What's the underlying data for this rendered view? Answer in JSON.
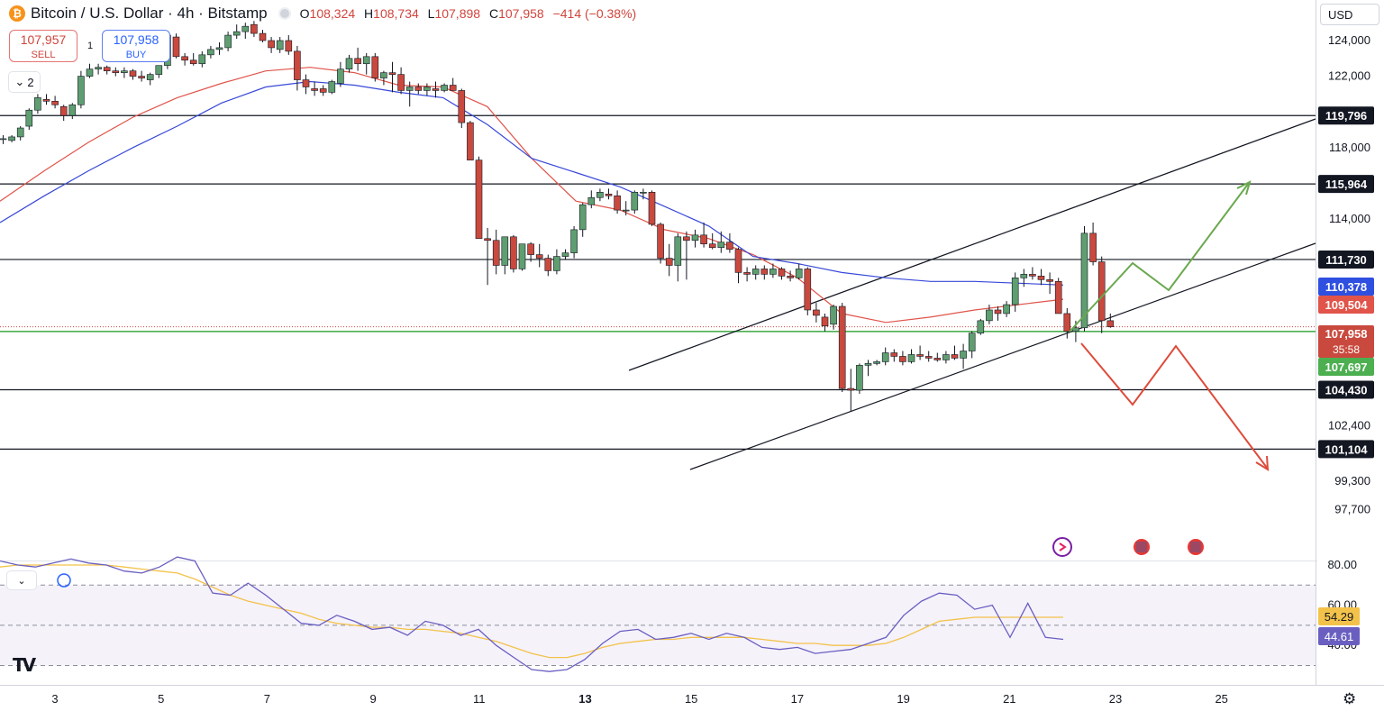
{
  "header": {
    "coin_glyph": "₿",
    "symbol_title": "Bitcoin / U.S. Dollar · 4h · Bitstamp",
    "ohlc": [
      {
        "label": "O",
        "value": "108,324"
      },
      {
        "label": "H",
        "value": "108,734"
      },
      {
        "label": "L",
        "value": "107,898"
      },
      {
        "label": "C",
        "value": "107,958"
      },
      {
        "label": "",
        "value": "−414 (−0.38%)"
      }
    ]
  },
  "trade": {
    "sell_price": "107,957",
    "sell_label": "SELL",
    "buy_price": "107,958",
    "buy_label": "BUY",
    "spread": "1"
  },
  "indicator_toggle": {
    "count": "2",
    "icon": "chevron-down-icon"
  },
  "currency": "USD",
  "colors": {
    "up": "#5f9e70",
    "down": "#c9493e",
    "ema_fast": "#e0544a",
    "ema_slow": "#3848d8",
    "support_line": "#4caf50",
    "rsi": "#6a5fc1",
    "rsi_ma": "#f3c24a",
    "arrow_up": "#6aa84f",
    "arrow_down": "#dd4b3a"
  },
  "chart_data": [
    {
      "type": "candlestick",
      "title": "Bitcoin / U.S. Dollar · 4h · Bitstamp",
      "ylim": [
        96800,
        125500
      ],
      "x_tick_labels": [
        "3",
        "5",
        "7",
        "9",
        "11",
        "13",
        "15",
        "17",
        "19",
        "21",
        "23",
        "25"
      ],
      "y_tick_labels": [
        "124,000",
        "122,000",
        "118,000",
        "114,000",
        "102,400",
        "99,300",
        "97,700"
      ],
      "series": [
        {
          "name": "EMA 20",
          "values": [
            115000,
            116700,
            118300,
            119700,
            120800,
            121600,
            122300,
            122500,
            122200,
            121500,
            121400,
            120300,
            117400,
            115000,
            114500,
            113400,
            112900,
            112000,
            110700,
            108700,
            108200,
            108500,
            108900,
            109200,
            109500
          ]
        },
        {
          "name": "EMA 50",
          "values": [
            113800,
            115300,
            116700,
            118000,
            119200,
            120500,
            121400,
            121700,
            121500,
            121100,
            120800,
            119300,
            117400,
            116600,
            115800,
            114700,
            113600,
            111900,
            111500,
            111000,
            110700,
            110500,
            110500,
            110400,
            110300
          ]
        }
      ],
      "horizontal_levels": [
        {
          "value": 119796,
          "label": "119,796"
        },
        {
          "value": 115964,
          "label": "115,964"
        },
        {
          "value": 111730,
          "label": "111,730"
        },
        {
          "value": 107697,
          "label": "107,697"
        },
        {
          "value": 104430,
          "label": "104,430"
        },
        {
          "value": 101104,
          "label": "101,104"
        }
      ],
      "price_labels": {
        "ema50": "110,378",
        "ema20": "109,504",
        "last_price": "107,958",
        "countdown": "35:58",
        "support": "107,697"
      },
      "candles_ohlc": [
        [
          118500,
          118700,
          118200,
          118500
        ],
        [
          118400,
          118700,
          118300,
          118600
        ],
        [
          118600,
          119200,
          118400,
          119100
        ],
        [
          119200,
          120200,
          119000,
          120100
        ],
        [
          120100,
          121000,
          119900,
          120800
        ],
        [
          120700,
          121000,
          120400,
          120600
        ],
        [
          120600,
          120900,
          120200,
          120400
        ],
        [
          120300,
          120400,
          119500,
          119800
        ],
        [
          119800,
          120500,
          119600,
          120400
        ],
        [
          120400,
          122300,
          120200,
          122000
        ],
        [
          122000,
          122700,
          121900,
          122400
        ],
        [
          122400,
          122700,
          122100,
          122500
        ],
        [
          122500,
          122600,
          122100,
          122300
        ],
        [
          122300,
          122500,
          122000,
          122200
        ],
        [
          122200,
          122500,
          121900,
          122300
        ],
        [
          122300,
          122400,
          121800,
          122000
        ],
        [
          122000,
          122300,
          121700,
          121900
        ],
        [
          121800,
          122200,
          121500,
          122100
        ],
        [
          122100,
          122600,
          121900,
          122600
        ],
        [
          122600,
          124500,
          122400,
          124300
        ],
        [
          124200,
          124400,
          123000,
          123100
        ],
        [
          123100,
          123300,
          122600,
          122900
        ],
        [
          122900,
          123300,
          122600,
          122700
        ],
        [
          122700,
          123400,
          122500,
          123200
        ],
        [
          123200,
          123700,
          123000,
          123500
        ],
        [
          123500,
          123900,
          123200,
          123600
        ],
        [
          123600,
          124500,
          123400,
          124300
        ],
        [
          124300,
          124900,
          124100,
          124500
        ],
        [
          124500,
          125000,
          124100,
          124800
        ],
        [
          124900,
          125100,
          124200,
          124400
        ],
        [
          124400,
          124600,
          123900,
          124000
        ],
        [
          124000,
          124200,
          123300,
          123600
        ],
        [
          123500,
          124200,
          123300,
          124000
        ],
        [
          124000,
          124300,
          123200,
          123400
        ],
        [
          123400,
          123700,
          121200,
          121800
        ],
        [
          121800,
          122100,
          121000,
          121400
        ],
        [
          121300,
          121700,
          120900,
          121200
        ],
        [
          121300,
          121500,
          120900,
          121100
        ],
        [
          121100,
          121800,
          121000,
          121700
        ],
        [
          121600,
          122800,
          121400,
          122400
        ],
        [
          122400,
          123200,
          122200,
          123000
        ],
        [
          123000,
          123600,
          122300,
          122700
        ],
        [
          122700,
          123300,
          122100,
          123100
        ],
        [
          123100,
          123300,
          121700,
          121900
        ],
        [
          121900,
          122300,
          121500,
          122200
        ],
        [
          122200,
          122800,
          121100,
          122100
        ],
        [
          122100,
          122500,
          121000,
          121200
        ],
        [
          121200,
          121700,
          120300,
          121400
        ],
        [
          121400,
          121600,
          121000,
          121200
        ],
        [
          121200,
          121600,
          120900,
          121400
        ],
        [
          121300,
          121700,
          120800,
          121200
        ],
        [
          121200,
          121600,
          121100,
          121500
        ],
        [
          121500,
          121900,
          121200,
          121200
        ],
        [
          121200,
          121300,
          119100,
          119400
        ],
        [
          119400,
          119500,
          117300,
          117300
        ],
        [
          117300,
          117500,
          112900,
          112900
        ],
        [
          112900,
          113500,
          110300,
          112800
        ],
        [
          112800,
          113400,
          110900,
          111400
        ],
        [
          111400,
          113000,
          110900,
          113000
        ],
        [
          113000,
          113100,
          111000,
          111200
        ],
        [
          111200,
          112600,
          111100,
          112600
        ],
        [
          112600,
          112700,
          111600,
          112000
        ],
        [
          112000,
          112600,
          111300,
          111800
        ],
        [
          111800,
          112000,
          110800,
          111100
        ],
        [
          111100,
          112300,
          110900,
          111900
        ],
        [
          111900,
          112300,
          111700,
          112100
        ],
        [
          112100,
          113600,
          111800,
          113400
        ],
        [
          113400,
          114900,
          113000,
          114800
        ],
        [
          114800,
          115600,
          114600,
          115200
        ],
        [
          115200,
          115700,
          115000,
          115500
        ],
        [
          115400,
          115700,
          115100,
          115300
        ],
        [
          115300,
          115600,
          114300,
          114500
        ],
        [
          114500,
          115000,
          114200,
          114500
        ],
        [
          114500,
          115600,
          114300,
          115500
        ],
        [
          115500,
          115700,
          115100,
          115500
        ],
        [
          115500,
          115600,
          113600,
          113700
        ],
        [
          113700,
          113800,
          111500,
          111800
        ],
        [
          111800,
          112600,
          110800,
          111400
        ],
        [
          111400,
          113200,
          110500,
          113000
        ],
        [
          113000,
          113300,
          110600,
          112800
        ],
        [
          112800,
          113400,
          112400,
          113100
        ],
        [
          113100,
          113800,
          112400,
          112600
        ],
        [
          112600,
          113200,
          112300,
          112400
        ],
        [
          112400,
          113300,
          112100,
          112700
        ],
        [
          112700,
          113200,
          112100,
          112300
        ],
        [
          112300,
          112400,
          110400,
          111000
        ],
        [
          111000,
          111300,
          110500,
          110900
        ],
        [
          110900,
          111400,
          110600,
          111200
        ],
        [
          111200,
          111400,
          110600,
          110900
        ],
        [
          110900,
          111500,
          110700,
          111200
        ],
        [
          111200,
          111300,
          110600,
          110800
        ],
        [
          110800,
          111100,
          110500,
          110700
        ],
        [
          110700,
          111500,
          110600,
          111200
        ],
        [
          111200,
          111300,
          108600,
          108900
        ],
        [
          108900,
          109300,
          108200,
          108600
        ],
        [
          108500,
          108700,
          107700,
          108000
        ],
        [
          108100,
          109200,
          107800,
          109100
        ],
        [
          109100,
          109300,
          104300,
          104500
        ],
        [
          104500,
          105600,
          103200,
          104400
        ],
        [
          104400,
          105900,
          104200,
          105800
        ],
        [
          105800,
          106100,
          105200,
          105900
        ],
        [
          105900,
          106100,
          105800,
          106000
        ],
        [
          106000,
          106800,
          105800,
          106500
        ],
        [
          106500,
          106700,
          106000,
          106300
        ],
        [
          106300,
          106600,
          105800,
          106000
        ],
        [
          106000,
          106700,
          105900,
          106400
        ],
        [
          106400,
          106900,
          106100,
          106300
        ],
        [
          106300,
          106600,
          106000,
          106200
        ],
        [
          106200,
          106500,
          106000,
          106100
        ],
        [
          106100,
          106600,
          105900,
          106400
        ],
        [
          106400,
          106900,
          106100,
          106200
        ],
        [
          106200,
          107000,
          105600,
          106600
        ],
        [
          106600,
          107700,
          106200,
          107600
        ],
        [
          107600,
          108400,
          107500,
          108300
        ],
        [
          108300,
          109200,
          108100,
          108900
        ],
        [
          108900,
          109100,
          108300,
          108700
        ],
        [
          108700,
          109400,
          108500,
          109200
        ],
        [
          109200,
          111000,
          108800,
          110700
        ],
        [
          110700,
          111200,
          110200,
          110900
        ],
        [
          110900,
          111300,
          110600,
          110800
        ],
        [
          110800,
          111200,
          110300,
          110600
        ],
        [
          110600,
          111000,
          109800,
          110500
        ],
        [
          110500,
          110700,
          108700,
          108700
        ],
        [
          108700,
          109000,
          107300,
          107700
        ],
        [
          107700,
          108300,
          107100,
          107900
        ],
        [
          107900,
          113600,
          107700,
          113200
        ],
        [
          113200,
          113800,
          111400,
          111600
        ],
        [
          111600,
          111900,
          107600,
          108300
        ],
        [
          108300,
          108700,
          107900,
          107958
        ]
      ]
    },
    {
      "type": "line",
      "title": "RSI",
      "ylim": [
        30,
        87
      ],
      "y_tick_labels": [
        "80.00",
        "60.00",
        "40.00"
      ],
      "guide_levels": [
        70,
        50,
        30
      ],
      "current_labels": {
        "rsi_ma": "54.29",
        "rsi": "44.61"
      },
      "series": [
        {
          "name": "RSI",
          "values": [
            82,
            80,
            79,
            81,
            83,
            81,
            80,
            77,
            76,
            79,
            84,
            82,
            66,
            65,
            71,
            65,
            58,
            51,
            50,
            55,
            52,
            48,
            49,
            45,
            52,
            50,
            45,
            48,
            40,
            34,
            28,
            27,
            28,
            33,
            41,
            47,
            48,
            43,
            44,
            46,
            43,
            46,
            44,
            39,
            38,
            39,
            36,
            37,
            38,
            41,
            44,
            55,
            62,
            66,
            65,
            58,
            60,
            44,
            61,
            44,
            43
          ]
        },
        {
          "name": "RSI MA",
          "values": [
            79,
            80,
            80,
            80,
            80,
            80,
            80,
            79,
            78,
            77,
            76,
            73,
            69,
            65,
            62,
            60,
            58,
            56,
            53,
            51,
            50,
            49,
            49,
            48,
            48,
            47,
            46,
            44,
            42,
            39,
            36,
            34,
            34,
            36,
            39,
            41,
            42,
            43,
            43,
            44,
            44,
            44,
            44,
            43,
            42,
            41,
            41,
            40,
            40,
            40,
            41,
            44,
            48,
            52,
            53,
            54,
            54,
            54,
            54,
            54,
            54
          ]
        }
      ]
    }
  ],
  "x_axis_labels": [
    "3",
    "5",
    "7",
    "9",
    "11",
    "13",
    "15",
    "17",
    "19",
    "21",
    "23",
    "25"
  ],
  "rsi_toggle_icon": "chevron-down-icon",
  "footer": {
    "logo": "TV",
    "settings_icon": "gear-icon"
  }
}
